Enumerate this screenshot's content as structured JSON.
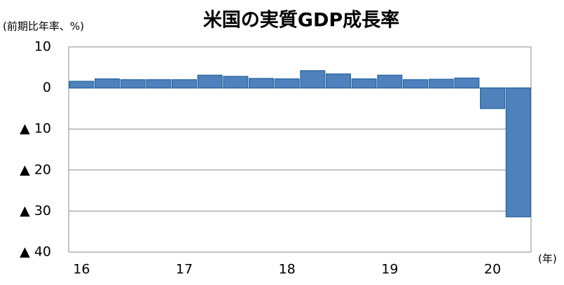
{
  "chart_data": {
    "type": "bar",
    "title": "米国の実質GDP成長率",
    "y_label": "(前期比年率、%)",
    "x_label": "(年)",
    "categories": [
      "16",
      null,
      null,
      null,
      "17",
      null,
      null,
      null,
      "18",
      null,
      null,
      null,
      "19",
      null,
      null,
      null,
      "20",
      null
    ],
    "values": [
      1.6,
      2.2,
      2.0,
      2.0,
      2.0,
      3.1,
      2.8,
      2.3,
      2.2,
      4.2,
      3.4,
      2.2,
      3.1,
      2.0,
      2.1,
      2.4,
      -5.0,
      -31.4
    ],
    "color": "#4f81bd",
    "ylim": [
      -40,
      10
    ],
    "yticks": [
      10,
      0,
      {
        "value": -10,
        "label": "▲ 10"
      },
      {
        "value": -20,
        "label": "▲ 20"
      },
      {
        "value": -30,
        "label": "▲ 30"
      },
      {
        "value": -40,
        "label": "▲ 40"
      }
    ],
    "grid": true
  }
}
